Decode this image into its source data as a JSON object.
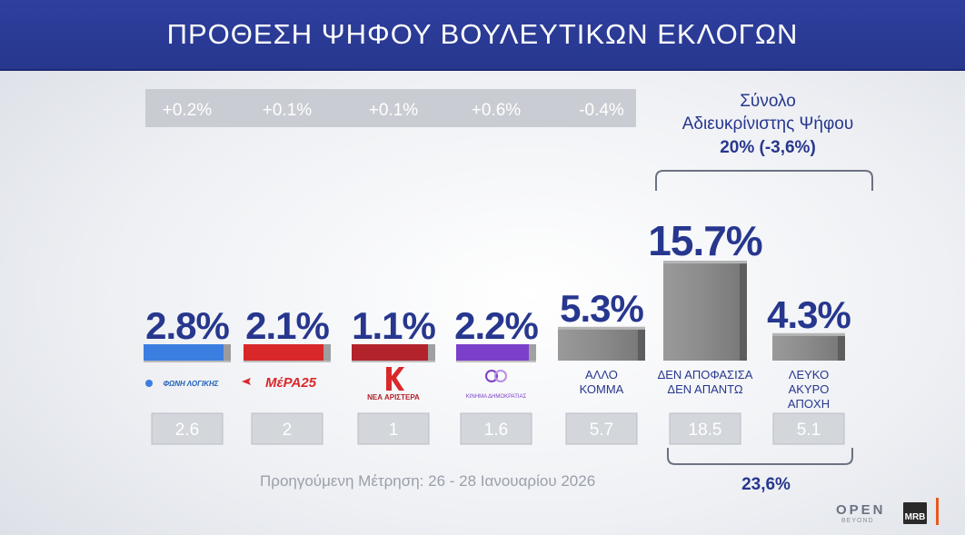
{
  "title": "ΠΡΟΘΕΣΗ ΨΗΦΟΥ ΒΟΥΛΕΥΤΙΚΩΝ ΕΚΛΟΓΩΝ",
  "chart_data": {
    "type": "bar",
    "unit": "%",
    "categories": [
      "Φωνή Λογικής",
      "ΜέΡΑ25",
      "Νέα Αριστερά",
      "Κίνημα Δημοκρατίας",
      "ΑΛΛΟ ΚΟΜΜΑ",
      "ΔΕΝ ΑΠΟΦΑΣΙΣΑ ΔΕΝ ΑΠΑΝΤΩ",
      "ΛΕΥΚΟ ΑΚΥΡΟ ΑΠΟΧΗ"
    ],
    "values": [
      2.8,
      2.1,
      1.1,
      2.2,
      5.3,
      15.7,
      4.3
    ],
    "value_labels": [
      "2.8%",
      "2.1%",
      "1.1%",
      "2.2%",
      "5.3%",
      "15.7%",
      "4.3%"
    ],
    "previous_values": [
      2.6,
      2,
      1,
      1.6,
      5.7,
      18.5,
      5.1
    ],
    "previous_labels": [
      "2.6",
      "2",
      "1",
      "1.6",
      "5.7",
      "18.5",
      "5.1"
    ],
    "changes": [
      "+0.2%",
      "+0.1%",
      "+0.1%",
      "+0.6%",
      "-0.4%"
    ],
    "bar_colors": [
      "#3b7ee0",
      "#d9282a",
      "#b2232b",
      "#7c3fc9",
      "#8a8a8a",
      "#8a8a8a",
      "#8a8a8a"
    ],
    "text_labels": [
      [],
      [],
      [],
      [],
      [
        "ΑΛΛΟ",
        "ΚΟΜΜΑ"
      ],
      [
        "ΔΕΝ ΑΠΟΦΑΣΙΣΑ",
        "ΔΕΝ ΑΠΑΝΤΩ"
      ],
      [
        "ΛΕΥΚΟ",
        "ΑΚΥΡΟ",
        "ΑΠΟΧΗ"
      ]
    ],
    "logo_texts": [
      "ΦΩΝΗ ΛΟΓΙΚΗΣ",
      "ΜέΡΑ25",
      "ΝΕΑ ΑΡΙΣΤΕΡΑ",
      "ΚΙΝΗΜΑ ΔΗΜΟΚΡΑΤΙΑΣ",
      "",
      "",
      ""
    ],
    "ylim": [
      0,
      16
    ],
    "undecided_total": {
      "lines": [
        "Σύνολο",
        "Αδιευκρίνιστης  Ψήφου"
      ],
      "value": "20% (-3,6%)"
    },
    "previous_undecided_total": "23,6%",
    "xlabel": "",
    "ylabel": ""
  },
  "footer": {
    "previous_measurement": "Προηγούμενη Μέτρηση: 26 - 28 Ιανουαρίου 2026"
  },
  "branding": {
    "open": "OPEN",
    "open_sub": "BEYOND",
    "mrb": "MRB",
    "accent": "#e85a1c"
  },
  "colors": {
    "title_bg": "#2b3b99",
    "value_text": "#27378e",
    "change_box": "#c9ccd2",
    "prev_box": "#d3d6db"
  }
}
